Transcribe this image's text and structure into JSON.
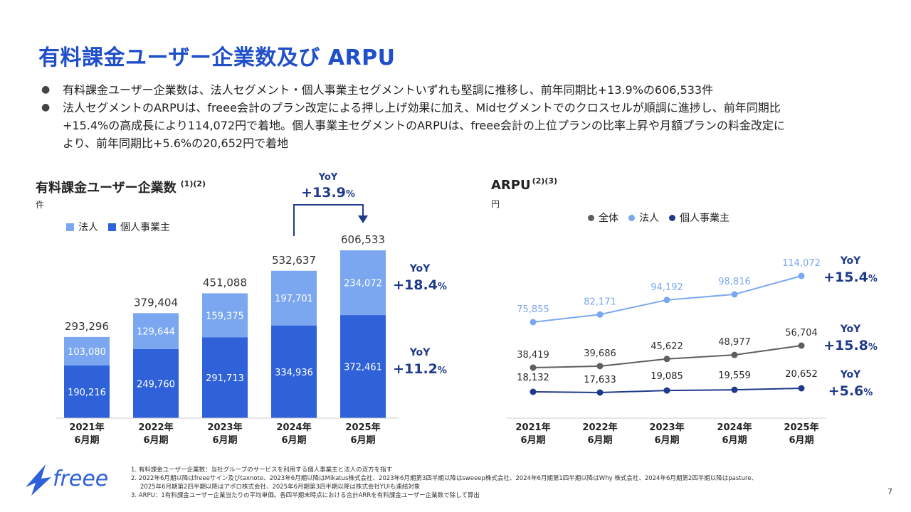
{
  "title": "有料課金ユーザー企業数及び ARPU",
  "bullets": [
    "有料課金ユーザー企業数は、法人セグメント・個人事業主セグメントいずれも堅調に推移し、前年同期比+13.9%の606,533件",
    "法人セグメントのARPUは、freee会計のプラン改定による押し上げ効果に加え、Midセグメントでのクロスセルが順調に進捗し、前年同期比",
    "+15.4%の高成長により114,072円で着地。個人事業主セグメントのARPUは、freee会計の上位プランの比率上昇や月額プランの料金改定に",
    "より、前年同期比+5.6%の20,652円で着地"
  ],
  "bullet_marker": "●",
  "left_chart": {
    "title": "有料課金ユーザー企業数",
    "title_note": "(1)(2)",
    "unit": "件",
    "legend": [
      {
        "name": "法人",
        "color": "#7aa7ef"
      },
      {
        "name": "個人事業主",
        "color": "#2f62d9"
      }
    ],
    "yoy_top": {
      "label": "YoY",
      "value": "+13.9",
      "pct": "%"
    },
    "yoy_corp": {
      "label": "YoY",
      "value": "+18.4",
      "pct": "%"
    },
    "yoy_indiv": {
      "label": "YoY",
      "value": "+11.2",
      "pct": "%"
    }
  },
  "right_chart": {
    "title": "ARPU",
    "title_note": "(2)(3)",
    "unit": "円",
    "legend": [
      {
        "name": "全体",
        "color": "#5f5f5f"
      },
      {
        "name": "法人",
        "color": "#7aa7ef"
      },
      {
        "name": "個人事業主",
        "color": "#1f3a8a"
      }
    ],
    "yoy_corp": {
      "label": "YoY",
      "value": "+15.4",
      "pct": "%"
    },
    "yoy_total": {
      "label": "YoY",
      "value": "+15.8",
      "pct": "%"
    },
    "yoy_indiv": {
      "label": "YoY",
      "value": "+5.6",
      "pct": "%"
    }
  },
  "chart_data": [
    {
      "type": "bar",
      "stacked": true,
      "categories": [
        [
          "2021年",
          "6月期"
        ],
        [
          "2022年",
          "6月期"
        ],
        [
          "2023年",
          "6月期"
        ],
        [
          "2024年",
          "6月期"
        ],
        [
          "2025年",
          "6月期"
        ]
      ],
      "series": [
        {
          "name": "個人事業主",
          "values": [
            190216,
            249760,
            291713,
            334936,
            372461
          ],
          "labels": [
            "190,216",
            "249,760",
            "291,713",
            "334,936",
            "372,461"
          ],
          "color": "#2f62d9"
        },
        {
          "name": "法人",
          "values": [
            103080,
            129644,
            159375,
            197701,
            234072
          ],
          "labels": [
            "103,080",
            "129,644",
            "159,375",
            "197,701",
            "234,072"
          ],
          "color": "#7aa7ef"
        }
      ],
      "totals": [
        293296,
        379404,
        451088,
        532637,
        606533
      ],
      "total_labels": [
        "293,296",
        "379,404",
        "451,088",
        "532,637",
        "606,533"
      ],
      "ylim": [
        0,
        700000
      ]
    },
    {
      "type": "line",
      "categories": [
        [
          "2021年",
          "6月期"
        ],
        [
          "2022年",
          "6月期"
        ],
        [
          "2023年",
          "6月期"
        ],
        [
          "2024年",
          "6月期"
        ],
        [
          "2025年",
          "6月期"
        ]
      ],
      "series": [
        {
          "name": "法人",
          "values": [
            75855,
            82171,
            94192,
            98816,
            114072
          ],
          "labels": [
            "75,855",
            "82,171",
            "94,192",
            "98,816",
            "114,072"
          ],
          "color": "#7aa7ef"
        },
        {
          "name": "全体",
          "values": [
            38419,
            39686,
            45622,
            48977,
            56704
          ],
          "labels": [
            "38,419",
            "39,686",
            "45,622",
            "48,977",
            "56,704"
          ],
          "color": "#5f5f5f"
        },
        {
          "name": "個人事業主",
          "values": [
            18132,
            17633,
            19085,
            19559,
            20652
          ],
          "labels": [
            "18,132",
            "17,633",
            "19,085",
            "19,559",
            "20,652"
          ],
          "color": "#1f3a8a"
        }
      ]
    }
  ],
  "footnotes": [
    "1.  有料課金ユーザー企業数：当社グループのサービスを利用する個人事業主と法人の双方を指す",
    "2.  2022年6月期以降はfreeeサイン及びtaxnote、2023年6月期以降はMikatus株式会社、2023年6月期第3四半期以降はsweeep株式会社、2024年6月期第1四半期以降はWhy 株式会社、2024年6月期第2四半期以降はpasture、",
    "2025年6月期第2四半期以降はアポロ株式会社、2025年6月期第3四半期以降は株式会社YUIも連結対象",
    "3.  ARPU：1有料課金ユーザー企業当たりの平均単価。各四半期末時点における合計ARRを有料課金ユーザー企業数で除して算出"
  ],
  "logo_text": "freee",
  "logo_color": "#2f62d9",
  "page_number": "7"
}
